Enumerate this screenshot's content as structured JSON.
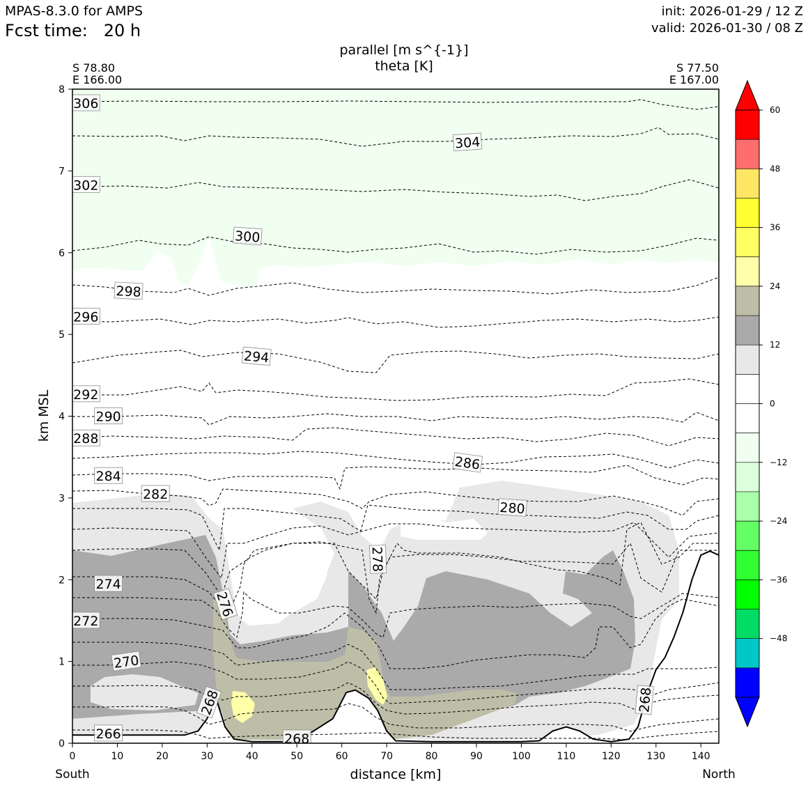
{
  "header": {
    "model": "MPAS-8.3.0 for AMPS",
    "fcst_time": "Fcst time:   20 h",
    "init": "init: 2026-01-29 / 12 Z",
    "valid": "valid: 2026-01-30 / 08 Z"
  },
  "chart_data": {
    "type": "cross-section",
    "title_line1": "parallel [m s^{-1}]",
    "title_line2": "theta [K]",
    "xlabel": "distance [km]",
    "ylabel": "km MSL",
    "xlim": [
      0,
      144
    ],
    "ylim": [
      0,
      8
    ],
    "xticks": [
      0,
      10,
      20,
      30,
      40,
      50,
      60,
      70,
      80,
      90,
      100,
      110,
      120,
      130,
      140
    ],
    "yticks": [
      0,
      1,
      2,
      3,
      4,
      5,
      6,
      7,
      8
    ],
    "start_point": {
      "lat": "S 78.80",
      "lon": "E 166.00",
      "end_label": "South"
    },
    "end_point": {
      "lat": "S 77.50",
      "lon": "E 167.00",
      "end_label": "North"
    },
    "terrain_km": [
      [
        0,
        0.1
      ],
      [
        10,
        0.1
      ],
      [
        20,
        0.1
      ],
      [
        25,
        0.1
      ],
      [
        28,
        0.15
      ],
      [
        30,
        0.3
      ],
      [
        32,
        0.55
      ],
      [
        34,
        0.2
      ],
      [
        36,
        0.05
      ],
      [
        40,
        0.02
      ],
      [
        50,
        0.02
      ],
      [
        58,
        0.3
      ],
      [
        61,
        0.62
      ],
      [
        63,
        0.65
      ],
      [
        66,
        0.55
      ],
      [
        68,
        0.4
      ],
      [
        70,
        0.15
      ],
      [
        72,
        0.03
      ],
      [
        80,
        0.02
      ],
      [
        100,
        0.02
      ],
      [
        104,
        0.03
      ],
      [
        107,
        0.15
      ],
      [
        110,
        0.2
      ],
      [
        113,
        0.15
      ],
      [
        116,
        0.05
      ],
      [
        120,
        0.02
      ],
      [
        124,
        0.05
      ],
      [
        126,
        0.2
      ],
      [
        128,
        0.6
      ],
      [
        130,
        0.9
      ],
      [
        132,
        1.05
      ],
      [
        134,
        1.3
      ],
      [
        136,
        1.6
      ],
      [
        138,
        2.0
      ],
      [
        140,
        2.3
      ],
      [
        142,
        2.35
      ],
      [
        144,
        2.3
      ]
    ],
    "theta_contours": [
      {
        "theta": 306,
        "x_km": 3,
        "z_km": 7.83,
        "rotation": 0
      },
      {
        "theta": 304,
        "x_km": 88,
        "z_km": 7.35,
        "rotation": -4
      },
      {
        "theta": 302,
        "x_km": 3,
        "z_km": 6.83,
        "rotation": 0
      },
      {
        "theta": 300,
        "x_km": 39,
        "z_km": 6.2,
        "rotation": 4
      },
      {
        "theta": 298,
        "x_km": 12.5,
        "z_km": 5.53,
        "rotation": 3
      },
      {
        "theta": 296,
        "x_km": 3,
        "z_km": 5.22,
        "rotation": 0
      },
      {
        "theta": 294,
        "x_km": 41,
        "z_km": 4.73,
        "rotation": 5
      },
      {
        "theta": 292,
        "x_km": 3,
        "z_km": 4.27,
        "rotation": 0
      },
      {
        "theta": 290,
        "x_km": 8,
        "z_km": 4.0,
        "rotation": 0
      },
      {
        "theta": 288,
        "x_km": 3,
        "z_km": 3.73,
        "rotation": 0
      },
      {
        "theta": 286,
        "x_km": 88,
        "z_km": 3.43,
        "rotation": 8
      },
      {
        "theta": 284,
        "x_km": 8,
        "z_km": 3.27,
        "rotation": 0
      },
      {
        "theta": 282,
        "x_km": 18.5,
        "z_km": 3.05,
        "rotation": 0
      },
      {
        "theta": 280,
        "x_km": 98,
        "z_km": 2.88,
        "rotation": 4
      },
      {
        "theta": 278,
        "x_km": 68,
        "z_km": 2.25,
        "rotation": 88
      },
      {
        "theta": 276,
        "x_km": 34,
        "z_km": 1.7,
        "rotation": 72
      },
      {
        "theta": 274,
        "x_km": 8,
        "z_km": 1.95,
        "rotation": 0
      },
      {
        "theta": 272,
        "x_km": 3,
        "z_km": 1.5,
        "rotation": 0
      },
      {
        "theta": 270,
        "x_km": 12,
        "z_km": 1.0,
        "rotation": -8
      },
      {
        "theta": 268,
        "x_km": 30.5,
        "z_km": 0.5,
        "rotation": -70
      },
      {
        "theta": 268,
        "x_km": 50,
        "z_km": 0.06,
        "rotation": 0
      },
      {
        "theta": 268,
        "x_km": 127.5,
        "z_km": 0.53,
        "rotation": -85
      },
      {
        "theta": 266,
        "x_km": 8,
        "z_km": 0.12,
        "rotation": 0
      }
    ],
    "colorbar": {
      "levels": [
        -60,
        -54,
        -48,
        -42,
        -36,
        -30,
        -24,
        -18,
        -12,
        -6,
        0,
        6,
        12,
        18,
        24,
        30,
        36,
        42,
        48,
        54,
        60
      ],
      "tick_labels": [
        "60",
        "48",
        "36",
        "24",
        "12",
        "0",
        "−12",
        "−24",
        "−36",
        "−48"
      ],
      "colors_bottom_to_top": [
        "#0000ff",
        "#00c8c8",
        "#00dc64",
        "#00ff00",
        "#32ff32",
        "#64ff64",
        "#aaffaa",
        "#dcffdc",
        "#f0fff0",
        "#ffffff",
        "#ffffff",
        "#e8e8e8",
        "#aaaaaa",
        "#bebea8",
        "#ffffaa",
        "#ffff64",
        "#ffff32",
        "#ffe664",
        "#ff6e6e",
        "#ff0000"
      ],
      "extend_low_color": "#0000ff",
      "extend_high_color": "#ff0000"
    }
  }
}
